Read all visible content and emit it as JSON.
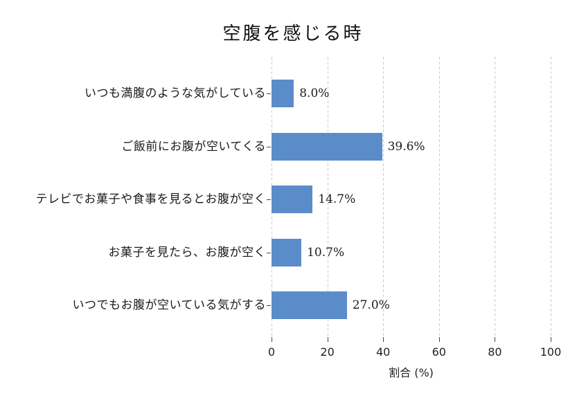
{
  "chart_data": {
    "type": "bar",
    "orientation": "horizontal",
    "title": "空腹を感じる時",
    "xlabel": "割合 (%)",
    "ylabel": "",
    "categories": [
      "いつも満腹のような気がしている",
      "ご飯前にお腹が空いてくる",
      "テレビでお菓子や食事を見るとお腹が空く",
      "お菓子を見たら、お腹が空く",
      "いつでもお腹が空いている気がする"
    ],
    "values": [
      8.0,
      39.6,
      14.7,
      10.7,
      27.0
    ],
    "value_labels": [
      "8.0%",
      "39.6%",
      "14.7%",
      "10.7%",
      "27.0%"
    ],
    "xlim": [
      0,
      100
    ],
    "xticks": [
      0,
      20,
      40,
      60,
      80,
      100
    ],
    "grid": "vertical-dashed",
    "legend": null,
    "bar_color": "#5b8cca",
    "grid_color": "#cbcbcb",
    "text_color": "#1a1a1a",
    "background_color": "#ffffff"
  }
}
